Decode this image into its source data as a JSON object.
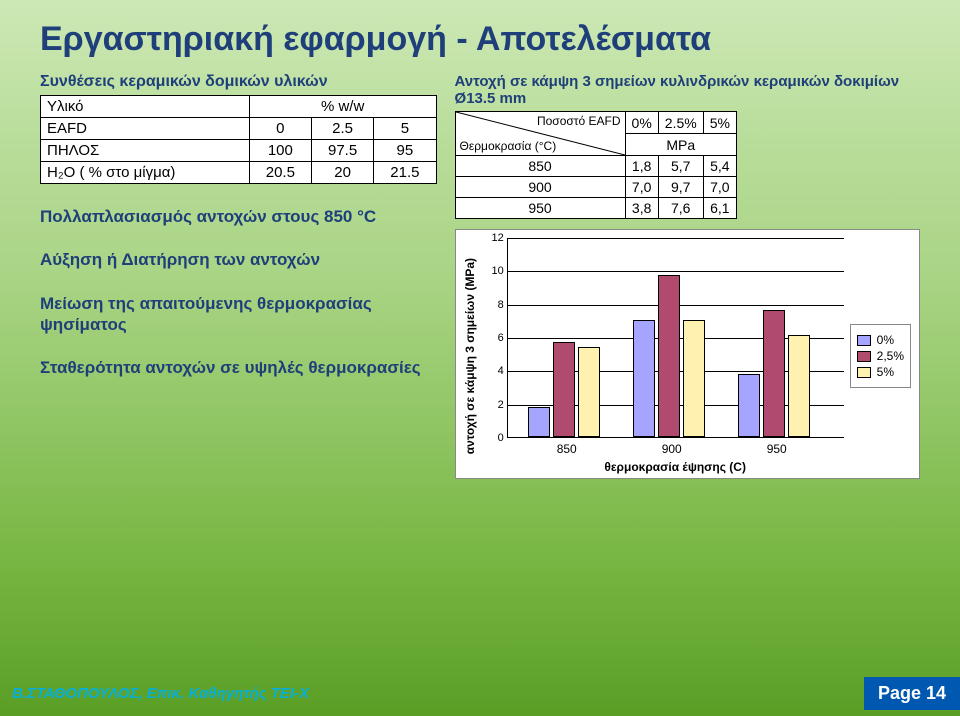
{
  "title": "Εργαστηριακή εφαρμογή - Αποτελέσματα",
  "table1": {
    "caption": "Συνθέσεις κεραμικών δομικών υλικών",
    "headers": [
      "Υλικό",
      "% w/w"
    ],
    "rows": [
      {
        "label": "EAFD",
        "v1": "0",
        "v2": "2.5",
        "v3": "5"
      },
      {
        "label": "ΠΗΛΟΣ",
        "v1": "100",
        "v2": "97.5",
        "v3": "95"
      },
      {
        "label": "Η₂Ο ( % στο μίγμα)",
        "v1": "20.5",
        "v2": "20",
        "v3": "21.5"
      }
    ]
  },
  "bullets": {
    "b1": "Πολλαπλασιασμός αντοχών στους 850 °C",
    "b2": "Αύξηση ή Διατήρηση των αντοχών",
    "b3": "Μείωση της απαιτούμενης θερμοκρασίας ψησίματος",
    "b4": "Σταθερότητα αντοχών σε υψηλές θερμοκρασίες"
  },
  "table2": {
    "caption": "Αντοχή σε κάμψη 3 σημείων κυλινδρικών κεραμικών δοκιμίων Ø13.5 mm",
    "diag_top": "Ποσοστό EAFD",
    "diag_bot": "Θερμοκρασία (°C)",
    "col_headers": [
      "0%",
      "2.5%",
      "5%"
    ],
    "unit_row": "MPa",
    "rows": [
      {
        "t": "850",
        "a": "1,8",
        "b": "5,7",
        "c": "5,4"
      },
      {
        "t": "900",
        "a": "7,0",
        "b": "9,7",
        "c": "7,0"
      },
      {
        "t": "950",
        "a": "3,8",
        "b": "7,6",
        "c": "6,1"
      }
    ]
  },
  "chart": {
    "type": "bar",
    "y_label": "αντοχή σε κάμψη 3 σημείων (ΜΡa)",
    "x_label": "θερμοκρασία έψησης (C)",
    "ymax": 12,
    "ytick_step": 2,
    "categories": [
      "850",
      "900",
      "950"
    ],
    "series": [
      {
        "name": "0%",
        "color": "#a5a5ff",
        "values": [
          1.8,
          7.0,
          3.8
        ]
      },
      {
        "name": "2,5%",
        "color": "#b04a6e",
        "values": [
          5.7,
          9.7,
          7.6
        ]
      },
      {
        "name": "5%",
        "color": "#fff2b0",
        "values": [
          5.4,
          7.0,
          6.1
        ]
      }
    ],
    "background_color": "#ffffff",
    "grid_color": "#000000"
  },
  "footer": {
    "author": "Β.ΣΤΑΘΟΠΟΥΛΟΣ, Επικ. Καθηγητής ΤΕΙ-Χ",
    "page": "Page 14"
  }
}
